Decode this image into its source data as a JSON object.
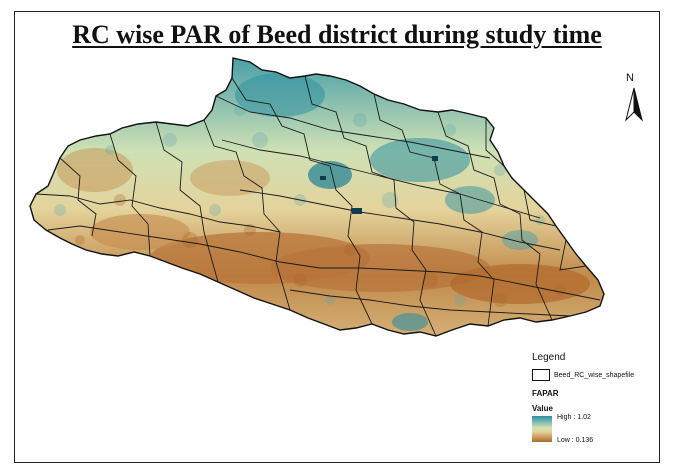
{
  "map": {
    "title": "RC wise PAR of Beed district during study time",
    "north_label": "N",
    "colors": {
      "high": "#2b8fa3",
      "mid": "#d9e6b9",
      "low": "#b06a2c",
      "boundary": "#1a1a1a"
    }
  },
  "legend": {
    "title": "Legend",
    "shape_label": "Beed_RC_wise_shapefile",
    "layer_label": "FAPAR",
    "value_label": "Value",
    "high_label": "High : 1.02",
    "low_label": "Low : 0.136"
  }
}
